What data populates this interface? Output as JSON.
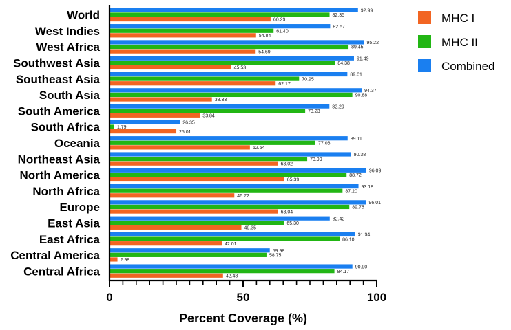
{
  "chart_data": {
    "type": "bar",
    "orientation": "horizontal",
    "xlabel": "Percent  Coverage (%)",
    "xlim": [
      0,
      100
    ],
    "xticks": [
      0,
      50,
      100
    ],
    "categories": [
      "World",
      "West Indies",
      "West Africa",
      "Southwest Asia",
      "Southeast Asia",
      "South Asia",
      "South America",
      "South Africa",
      "Oceania",
      "Northeast Asia",
      "North America",
      "North Africa",
      "Europe",
      "East Asia",
      "East Africa",
      "Central America",
      "Central Africa"
    ],
    "series": [
      {
        "name": "MHC I",
        "color": "#f26522",
        "values": [
          60.29,
          54.84,
          54.69,
          45.53,
          62.17,
          38.33,
          33.84,
          25.01,
          52.54,
          63.02,
          65.39,
          46.72,
          63.04,
          49.35,
          42.01,
          2.98,
          42.48
        ]
      },
      {
        "name": "MHC II",
        "color": "#22b614",
        "values": [
          82.35,
          61.4,
          89.45,
          84.38,
          70.95,
          90.88,
          73.23,
          1.79,
          77.06,
          73.99,
          88.72,
          87.2,
          89.75,
          65.3,
          86.1,
          58.75,
          84.17
        ]
      },
      {
        "name": "Combined",
        "color": "#1a7ff0",
        "values": [
          92.99,
          82.57,
          95.22,
          91.49,
          89.01,
          94.37,
          82.29,
          26.35,
          89.11,
          90.38,
          96.09,
          93.18,
          96.01,
          82.42,
          91.94,
          59.98,
          90.9
        ]
      }
    ],
    "value_labels": [
      [
        "60.29",
        "82.35",
        "92.99"
      ],
      [
        "54.84",
        "61.40",
        "82.57"
      ],
      [
        "54.69",
        "89.45",
        "95.22"
      ],
      [
        "45.53",
        "84.38",
        "91.49"
      ],
      [
        "62.17",
        "70.95",
        "89.01"
      ],
      [
        "38.33",
        "90.88",
        "94.37"
      ],
      [
        "33.84",
        "73.23",
        "82.29"
      ],
      [
        "25.01",
        "1.79",
        "26.35"
      ],
      [
        "52.54",
        "77.06",
        "89.11"
      ],
      [
        "63.02",
        "73.99",
        "90.38"
      ],
      [
        "65.39",
        "88.72",
        "96.09"
      ],
      [
        "46.72",
        "87.20",
        "93.18"
      ],
      [
        "63.04",
        "89.75",
        "96.01"
      ],
      [
        "49.35",
        "65.30",
        "82.42"
      ],
      [
        "42.01",
        "86.10",
        "91.94"
      ],
      [
        "2.98",
        "58.75",
        "59.98"
      ],
      [
        "42.48",
        "84.17",
        "90.90"
      ]
    ],
    "legend": {
      "position": "right",
      "entries": [
        "MHC I",
        "MHC II",
        "Combined"
      ]
    },
    "grid": false
  }
}
